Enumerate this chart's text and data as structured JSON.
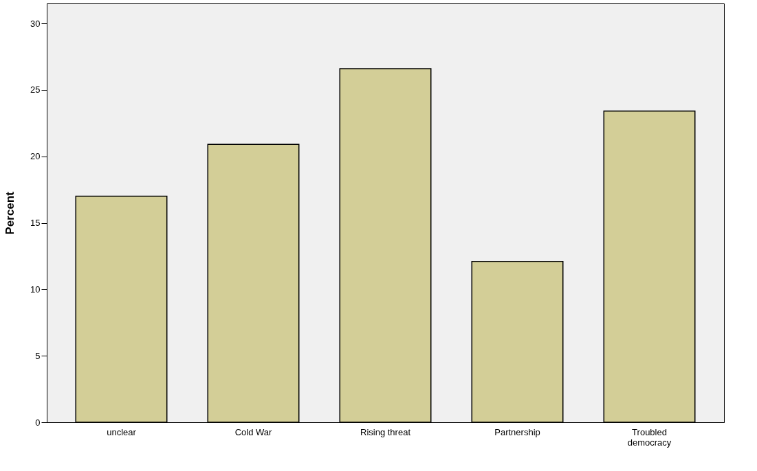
{
  "chart_data": {
    "type": "bar",
    "ylabel": "Percent",
    "categories": [
      "unclear",
      "Cold War",
      "Rising threat",
      "Partnership",
      "Troubled democracy"
    ],
    "values": [
      17.0,
      20.9,
      26.6,
      12.1,
      23.4
    ],
    "color": "#d3ce97",
    "ylim": [
      0,
      31.5
    ],
    "yticks": [
      0,
      5,
      10,
      15,
      20,
      25,
      30
    ],
    "grid": false
  }
}
